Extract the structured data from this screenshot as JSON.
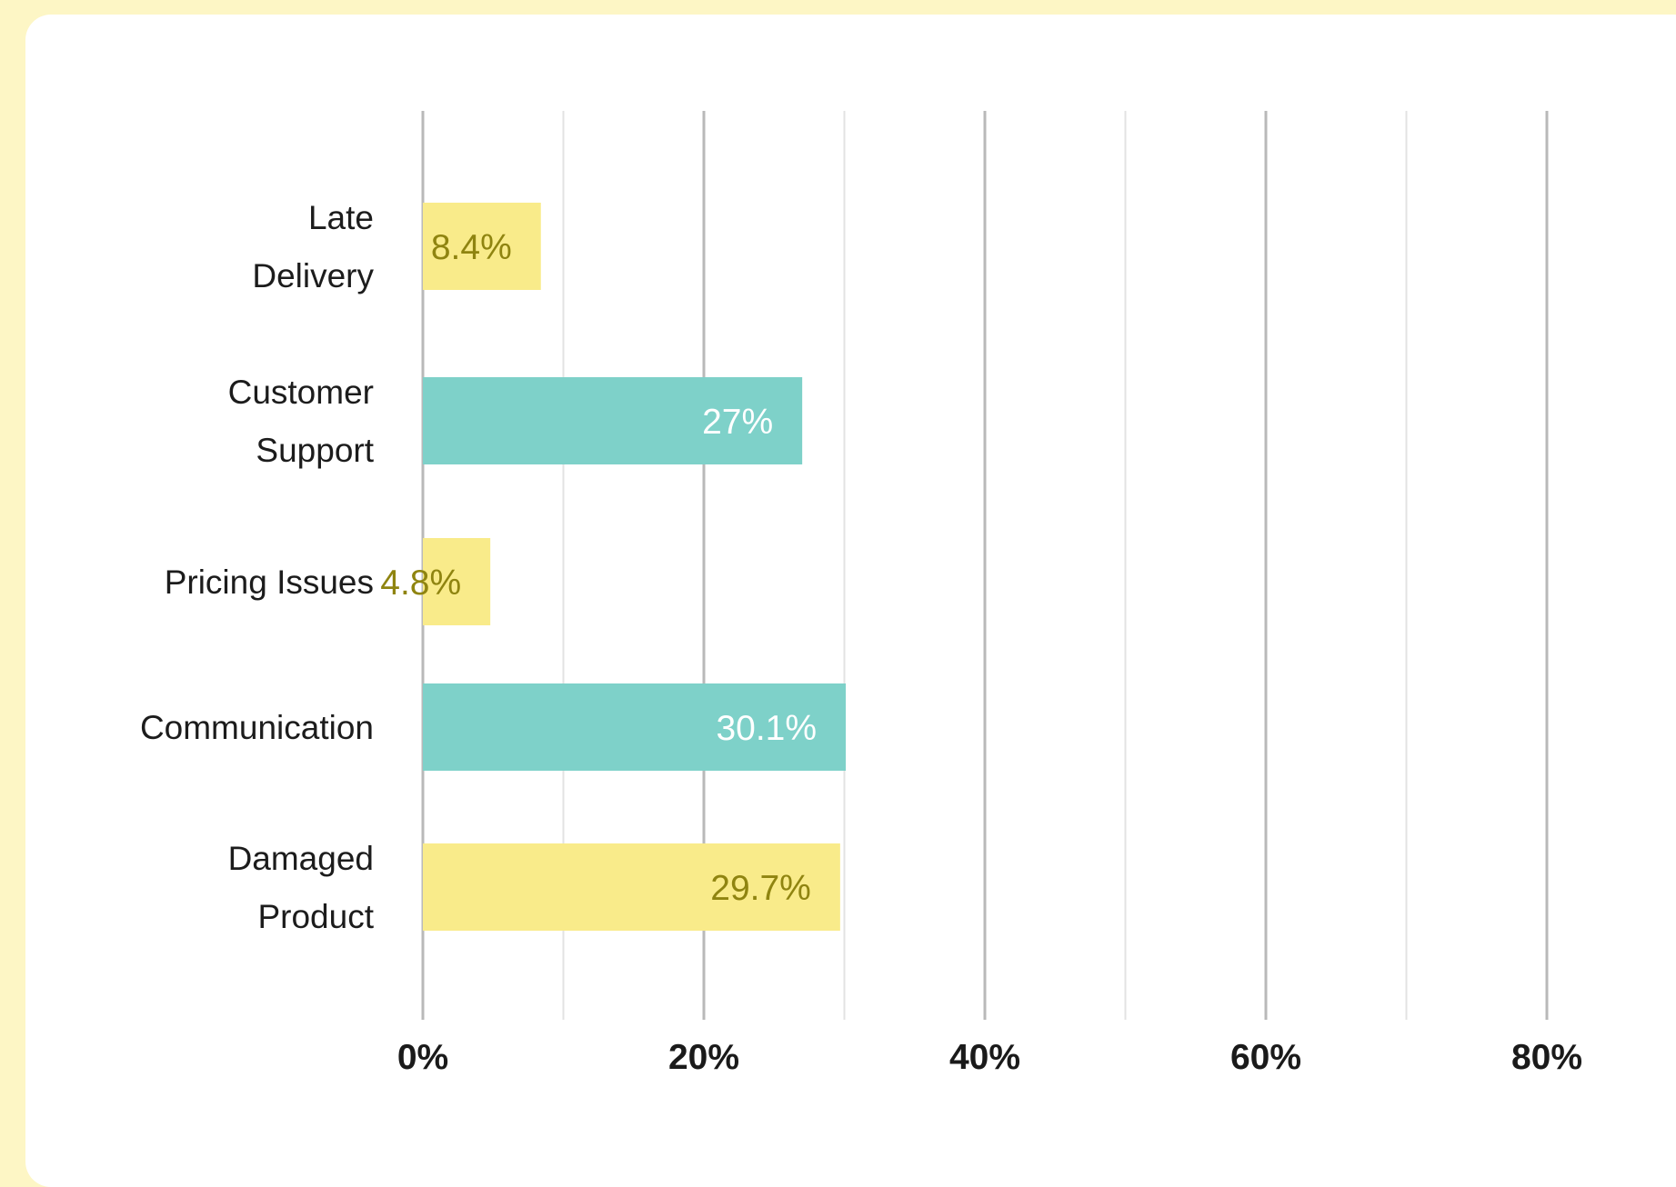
{
  "colors": {
    "background": "#fdf6c5",
    "card": "#ffffff",
    "bar_yellow": "#f9eb8a",
    "bar_teal": "#7ed1c9",
    "label_on_yellow": "#8f8410",
    "label_on_teal": "#ffffff",
    "major_grid": "#b9b9b9",
    "minor_grid": "#e3e3e3"
  },
  "chart_data": {
    "type": "bar",
    "orientation": "horizontal",
    "title": "",
    "xlabel": "",
    "ylabel": "",
    "xlim": [
      0,
      80
    ],
    "x_ticks": [
      0,
      20,
      40,
      60,
      80
    ],
    "x_tick_labels": [
      "0%",
      "20%",
      "40%",
      "60%",
      "80%"
    ],
    "grid": true,
    "legend": "none",
    "categories": [
      {
        "lines": [
          "Late",
          "Delivery"
        ],
        "value": 8.4,
        "label": "8.4%",
        "color": "yellow"
      },
      {
        "lines": [
          "Customer",
          "Support"
        ],
        "value": 27,
        "label": "27%",
        "color": "teal"
      },
      {
        "lines": [
          "Pricing Issues"
        ],
        "value": 4.8,
        "label": "4.8%",
        "color": "yellow"
      },
      {
        "lines": [
          "Communication"
        ],
        "value": 30.1,
        "label": "30.1%",
        "color": "teal"
      },
      {
        "lines": [
          "Damaged",
          "Product"
        ],
        "value": 29.7,
        "label": "29.7%",
        "color": "yellow"
      }
    ]
  }
}
